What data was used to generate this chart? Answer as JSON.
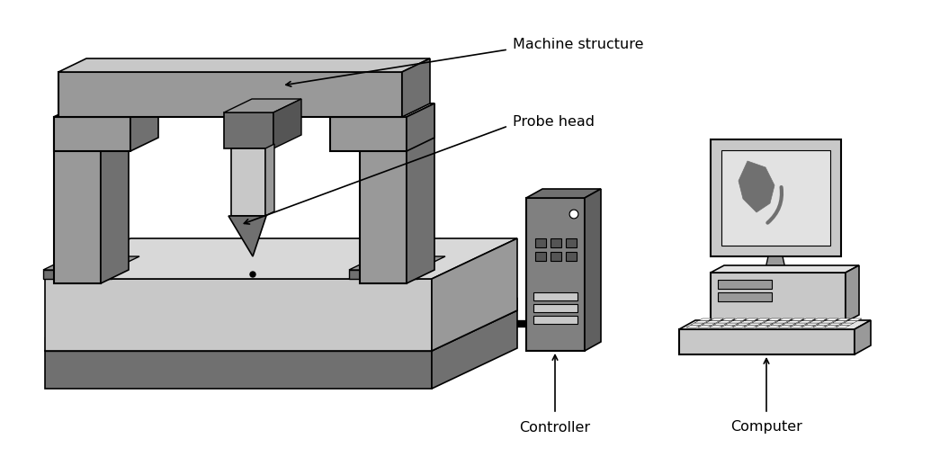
{
  "background_color": "#ffffff",
  "labels": {
    "machine_structure": "Machine structure",
    "probe_head": "Probe head",
    "controller": "Controller",
    "computer": "Computer"
  },
  "colors": {
    "light_gray": "#c8c8c8",
    "mid_gray": "#999999",
    "dark_gray": "#707070",
    "darker_gray": "#555555",
    "black": "#000000",
    "white": "#ffffff",
    "very_light_gray": "#e2e2e2",
    "table_top": "#d8d8d8",
    "controller_body": "#808080",
    "controller_dark": "#606060"
  },
  "figsize": [
    10.55,
    5.08
  ],
  "dpi": 100
}
